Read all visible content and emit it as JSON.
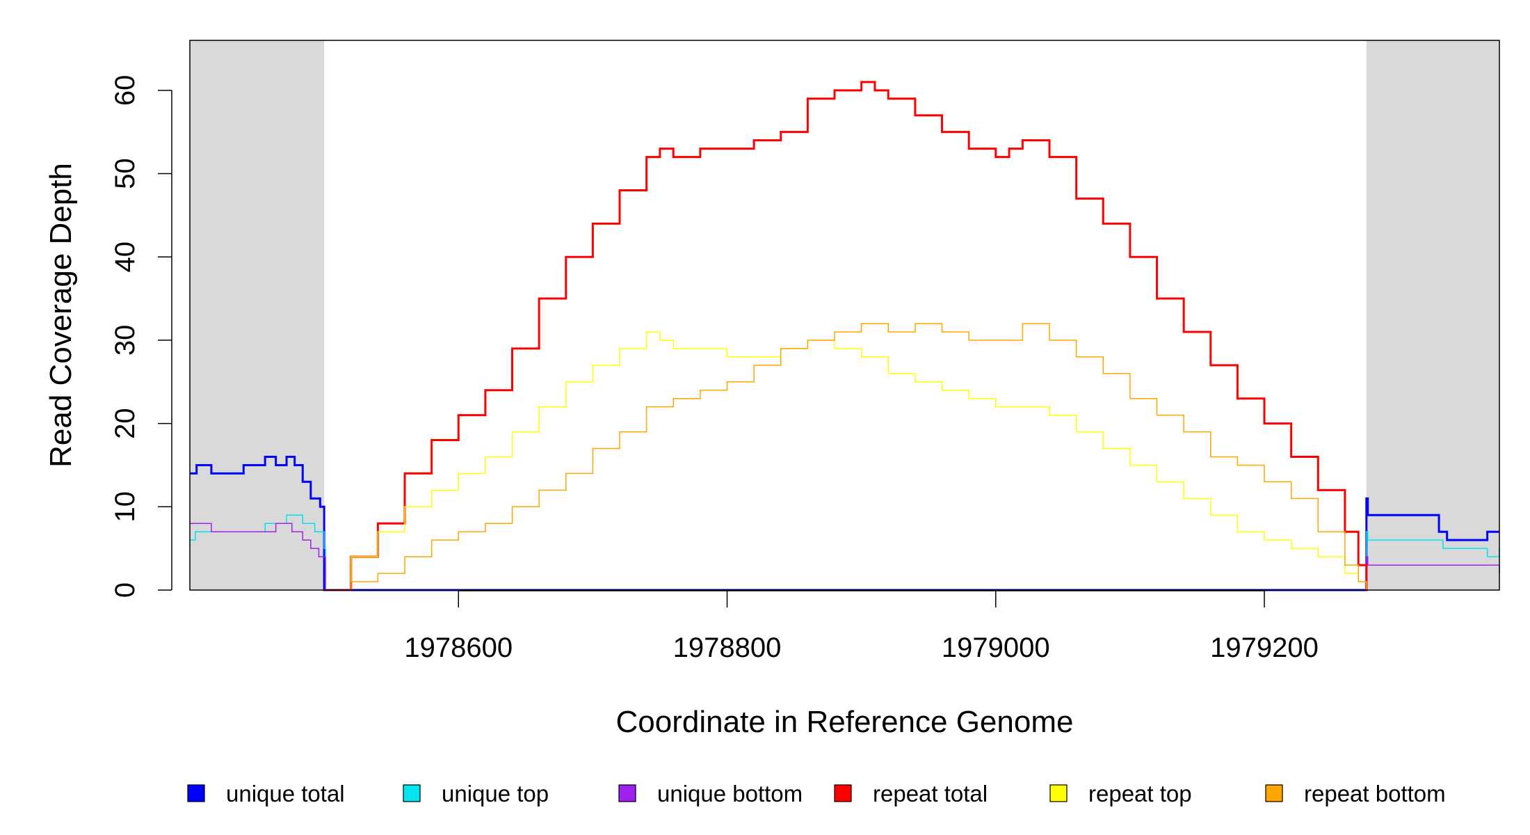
{
  "chart_data": {
    "type": "line",
    "title": "",
    "xlabel": "Coordinate in Reference Genome",
    "ylabel": "Read Coverage Depth",
    "xlim": [
      1978400,
      1979375
    ],
    "ylim": [
      0,
      66
    ],
    "x_ticks": [
      1978600,
      1978800,
      1979000,
      1979200
    ],
    "x_tick_labels": [
      "1978600",
      "1978800",
      "1979000",
      "1979200"
    ],
    "y_ticks": [
      0,
      10,
      20,
      30,
      40,
      50,
      60
    ],
    "y_tick_labels": [
      "0",
      "10",
      "20",
      "30",
      "40",
      "50",
      "60"
    ],
    "shaded_regions": [
      [
        1978400,
        1978500
      ],
      [
        1979276,
        1979375
      ]
    ],
    "shade_color": "#d9d9d9",
    "grid": false,
    "legend_position": "bottom",
    "series": [
      {
        "name": "unique total",
        "color": "#0000ff",
        "width": 3,
        "step": true,
        "x": [
          1978400,
          1978405,
          1978416,
          1978440,
          1978456,
          1978464,
          1978472,
          1978478,
          1978484,
          1978490,
          1978497,
          1978500,
          1978501,
          1979274,
          1979276,
          1979277,
          1979327,
          1979330,
          1979336,
          1979366,
          1979375
        ],
        "y": [
          14,
          15,
          14,
          15,
          16,
          15,
          16,
          15,
          13,
          11,
          10,
          0,
          0,
          0,
          11,
          9,
          9,
          7,
          6,
          7,
          7
        ]
      },
      {
        "name": "unique top",
        "color": "#00e5ee",
        "width": 1.5,
        "step": true,
        "x": [
          1978400,
          1978404,
          1978416,
          1978440,
          1978456,
          1978472,
          1978484,
          1978493,
          1978500,
          1978501,
          1979274,
          1979276,
          1979277,
          1979327,
          1979333,
          1979366,
          1979375
        ],
        "y": [
          6,
          7,
          7,
          7,
          8,
          9,
          8,
          7,
          5,
          0,
          0,
          7,
          6,
          6,
          5,
          4,
          5
        ]
      },
      {
        "name": "unique bottom",
        "color": "#a020f0",
        "width": 1.5,
        "step": true,
        "x": [
          1978400,
          1978416,
          1978440,
          1978464,
          1978476,
          1978484,
          1978490,
          1978496,
          1978500,
          1978501,
          1979274,
          1979276,
          1979277,
          1979330,
          1979375
        ],
        "y": [
          8,
          7,
          7,
          8,
          7,
          6,
          5,
          4,
          4,
          0,
          0,
          4,
          3,
          3,
          2
        ]
      },
      {
        "name": "repeat total",
        "color": "#ff0000",
        "width": 3,
        "step": true,
        "x": [
          1978500,
          1978520,
          1978540,
          1978560,
          1978580,
          1978600,
          1978620,
          1978640,
          1978660,
          1978680,
          1978700,
          1978720,
          1978740,
          1978750,
          1978760,
          1978780,
          1978800,
          1978820,
          1978840,
          1978860,
          1978880,
          1978900,
          1978910,
          1978920,
          1978940,
          1978960,
          1978980,
          1979000,
          1979010,
          1979020,
          1979040,
          1979060,
          1979080,
          1979100,
          1979120,
          1979140,
          1979160,
          1979180,
          1979200,
          1979220,
          1979240,
          1979260,
          1979270,
          1979276,
          1979277
        ],
        "y": [
          0,
          4,
          8,
          14,
          18,
          21,
          24,
          29,
          35,
          40,
          44,
          48,
          52,
          53,
          52,
          53,
          53,
          54,
          55,
          59,
          60,
          61,
          60,
          59,
          57,
          55,
          53,
          52,
          53,
          54,
          52,
          47,
          44,
          40,
          35,
          31,
          27,
          23,
          20,
          16,
          12,
          7,
          3,
          0,
          0
        ]
      },
      {
        "name": "repeat top",
        "color": "#ffff00",
        "width": 1.5,
        "step": true,
        "x": [
          1978500,
          1978520,
          1978540,
          1978560,
          1978580,
          1978600,
          1978620,
          1978640,
          1978660,
          1978680,
          1978700,
          1978720,
          1978740,
          1978750,
          1978760,
          1978780,
          1978800,
          1978820,
          1978840,
          1978860,
          1978880,
          1978900,
          1978920,
          1978940,
          1978960,
          1978980,
          1979000,
          1979020,
          1979040,
          1979060,
          1979080,
          1979100,
          1979120,
          1979140,
          1979160,
          1979180,
          1979200,
          1979220,
          1979240,
          1979260,
          1979270,
          1979276
        ],
        "y": [
          0,
          4,
          7,
          10,
          12,
          14,
          16,
          19,
          22,
          25,
          27,
          29,
          31,
          30,
          29,
          29,
          28,
          28,
          29,
          30,
          29,
          28,
          26,
          25,
          24,
          23,
          22,
          22,
          21,
          19,
          17,
          15,
          13,
          11,
          9,
          7,
          6,
          5,
          4,
          2,
          1,
          0
        ]
      },
      {
        "name": "repeat bottom",
        "color": "#ffa500",
        "width": 1.5,
        "step": true,
        "x": [
          1978500,
          1978520,
          1978540,
          1978560,
          1978580,
          1978600,
          1978620,
          1978640,
          1978660,
          1978680,
          1978700,
          1978720,
          1978740,
          1978760,
          1978780,
          1978800,
          1978820,
          1978840,
          1978860,
          1978880,
          1978900,
          1978920,
          1978940,
          1978960,
          1978980,
          1979000,
          1979020,
          1979040,
          1979060,
          1979080,
          1979100,
          1979120,
          1979140,
          1979160,
          1979180,
          1979200,
          1979220,
          1979240,
          1979260,
          1979270,
          1979276
        ],
        "y": [
          0,
          1,
          2,
          4,
          6,
          7,
          8,
          10,
          12,
          14,
          17,
          19,
          22,
          23,
          24,
          25,
          27,
          29,
          30,
          31,
          32,
          31,
          32,
          31,
          30,
          30,
          32,
          30,
          28,
          26,
          23,
          21,
          19,
          16,
          15,
          13,
          11,
          7,
          3,
          1,
          0
        ]
      }
    ]
  }
}
